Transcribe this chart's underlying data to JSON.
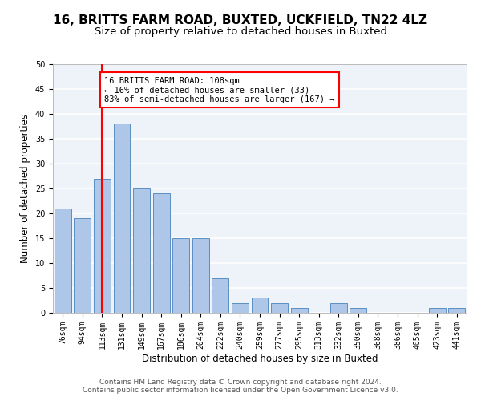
{
  "title1": "16, BRITTS FARM ROAD, BUXTED, UCKFIELD, TN22 4LZ",
  "title2": "Size of property relative to detached houses in Buxted",
  "xlabel": "Distribution of detached houses by size in Buxted",
  "ylabel": "Number of detached properties",
  "bar_labels": [
    "76sqm",
    "94sqm",
    "113sqm",
    "131sqm",
    "149sqm",
    "167sqm",
    "186sqm",
    "204sqm",
    "222sqm",
    "240sqm",
    "259sqm",
    "277sqm",
    "295sqm",
    "313sqm",
    "332sqm",
    "350sqm",
    "368sqm",
    "386sqm",
    "405sqm",
    "423sqm",
    "441sqm"
  ],
  "bar_values": [
    21,
    19,
    27,
    38,
    25,
    24,
    15,
    15,
    7,
    2,
    3,
    2,
    1,
    0,
    2,
    1,
    0,
    0,
    0,
    1,
    1
  ],
  "bar_color": "#aec6e8",
  "bar_edge_color": "#5a8fc2",
  "background_color": "#eef2f9",
  "grid_color": "#ffffff",
  "vline_x": 2,
  "vline_color": "red",
  "annotation_line1": "16 BRITTS FARM ROAD: 108sqm",
  "annotation_line2": "← 16% of detached houses are smaller (33)",
  "annotation_line3": "83% of semi-detached houses are larger (167) →",
  "annotation_box_color": "white",
  "annotation_box_edge": "red",
  "ylim": [
    0,
    50
  ],
  "yticks": [
    0,
    5,
    10,
    15,
    20,
    25,
    30,
    35,
    40,
    45,
    50
  ],
  "footer1": "Contains HM Land Registry data © Crown copyright and database right 2024.",
  "footer2": "Contains public sector information licensed under the Open Government Licence v3.0.",
  "title1_fontsize": 11,
  "title2_fontsize": 9.5,
  "tick_fontsize": 7,
  "ylabel_fontsize": 8.5,
  "xlabel_fontsize": 8.5,
  "annotation_fontsize": 7.5,
  "footer_fontsize": 6.5
}
